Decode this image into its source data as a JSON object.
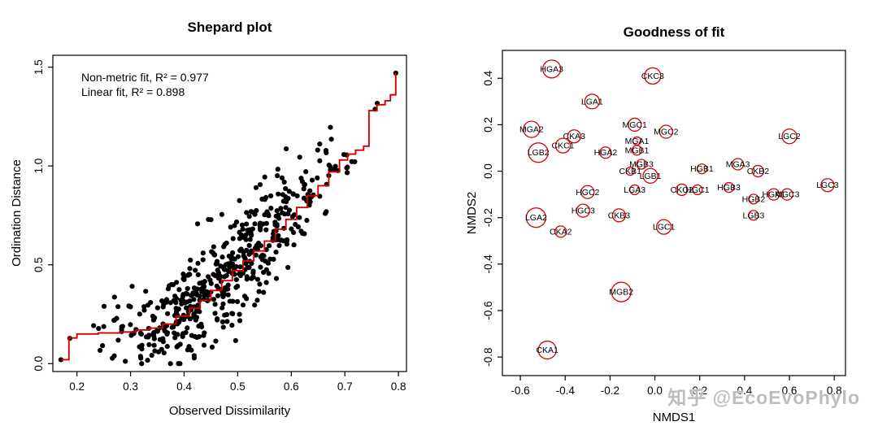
{
  "watermark": "知乎 @EcoEvoPhylo",
  "chart_data": [
    {
      "type": "scatter",
      "title": "Shepard plot",
      "xlabel": "Observed Dissimilarity",
      "ylabel": "Ordination Distance",
      "xlim": [
        0.155,
        0.815
      ],
      "ylim": [
        -0.04,
        1.56
      ],
      "x_ticks": [
        0.2,
        0.3,
        0.4,
        0.5,
        0.6,
        0.7,
        0.8
      ],
      "x_tick_labels": [
        "0.2",
        "0.3",
        "0.4",
        "0.5",
        "0.6",
        "0.7",
        "0.8"
      ],
      "y_ticks": [
        0.0,
        0.5,
        1.0,
        1.5
      ],
      "y_tick_labels": [
        "0.0",
        "0.5",
        "1.0",
        "1.5"
      ],
      "annotations": [
        "Non-metric fit, R² = 0.977",
        "Linear fit, R² = 0.898"
      ],
      "point_color": "#000000",
      "line_color": "#d40000",
      "scatter_generation": {
        "n": 520,
        "seed": 11,
        "x_min": 0.17,
        "x_max": 0.8,
        "noise_sd": 0.105
      },
      "extra_points": [
        [
          0.17,
          0.02
        ],
        [
          0.795,
          1.47
        ]
      ],
      "monotone_line": [
        [
          0.17,
          0.02
        ],
        [
          0.185,
          0.13
        ],
        [
          0.2,
          0.15
        ],
        [
          0.24,
          0.155
        ],
        [
          0.28,
          0.16
        ],
        [
          0.31,
          0.17
        ],
        [
          0.335,
          0.18
        ],
        [
          0.36,
          0.2
        ],
        [
          0.385,
          0.24
        ],
        [
          0.41,
          0.28
        ],
        [
          0.43,
          0.32
        ],
        [
          0.45,
          0.37
        ],
        [
          0.47,
          0.42
        ],
        [
          0.49,
          0.47
        ],
        [
          0.51,
          0.52
        ],
        [
          0.53,
          0.57
        ],
        [
          0.55,
          0.62
        ],
        [
          0.57,
          0.68
        ],
        [
          0.59,
          0.73
        ],
        [
          0.61,
          0.79
        ],
        [
          0.63,
          0.85
        ],
        [
          0.65,
          0.9
        ],
        [
          0.67,
          0.97
        ],
        [
          0.69,
          1.03
        ],
        [
          0.705,
          1.06
        ],
        [
          0.72,
          1.08
        ],
        [
          0.735,
          1.1
        ],
        [
          0.745,
          1.28
        ],
        [
          0.76,
          1.31
        ],
        [
          0.775,
          1.33
        ],
        [
          0.785,
          1.36
        ],
        [
          0.795,
          1.47
        ]
      ]
    },
    {
      "type": "scatter",
      "title": "Goodness of fit",
      "xlabel": "NMDS1",
      "ylabel": "NMDS2",
      "xlim": [
        -0.68,
        0.85
      ],
      "ylim": [
        -0.88,
        0.52
      ],
      "x_ticks": [
        -0.6,
        -0.4,
        -0.2,
        0.0,
        0.2,
        0.4,
        0.6,
        0.8
      ],
      "x_tick_labels": [
        "-0.6",
        "-0.4",
        "-0.2",
        "0.0",
        "0.2",
        "0.4",
        "0.6",
        "0.8"
      ],
      "y_ticks": [
        -0.8,
        -0.6,
        -0.4,
        -0.2,
        0.0,
        0.2,
        0.4
      ],
      "y_tick_labels": [
        "-0.8",
        "-0.6",
        "-0.4",
        "-0.2",
        "0.0",
        "0.2",
        "0.4"
      ],
      "circle_color": "#d40000",
      "label_color": "#000000",
      "points": [
        {
          "label": "HGA3",
          "x": -0.46,
          "y": 0.44,
          "r": 11
        },
        {
          "label": "CKC3",
          "x": -0.01,
          "y": 0.41,
          "r": 10
        },
        {
          "label": "LGA1",
          "x": -0.28,
          "y": 0.3,
          "r": 9
        },
        {
          "label": "MGA2",
          "x": -0.55,
          "y": 0.18,
          "r": 10
        },
        {
          "label": "CKA3",
          "x": -0.36,
          "y": 0.15,
          "r": 8
        },
        {
          "label": "CKC1",
          "x": -0.41,
          "y": 0.11,
          "r": 9
        },
        {
          "label": "MGC1",
          "x": -0.09,
          "y": 0.2,
          "r": 8
        },
        {
          "label": "MGC2",
          "x": 0.05,
          "y": 0.17,
          "r": 8
        },
        {
          "label": "LGC2",
          "x": 0.6,
          "y": 0.15,
          "r": 9
        },
        {
          "label": "LGB2",
          "x": -0.52,
          "y": 0.08,
          "r": 12
        },
        {
          "label": "HGA2",
          "x": -0.22,
          "y": 0.08,
          "r": 7
        },
        {
          "label": "MGA1",
          "x": -0.08,
          "y": 0.13,
          "r": 5
        },
        {
          "label": "MGB1",
          "x": -0.08,
          "y": 0.09,
          "r": 6
        },
        {
          "label": "MGB3",
          "x": -0.06,
          "y": 0.03,
          "r": 6
        },
        {
          "label": "CKB1",
          "x": -0.11,
          "y": 0.0,
          "r": 5
        },
        {
          "label": "LGB1",
          "x": -0.02,
          "y": -0.02,
          "r": 9
        },
        {
          "label": "HGB1",
          "x": 0.21,
          "y": 0.01,
          "r": 6
        },
        {
          "label": "MGA3",
          "x": 0.37,
          "y": 0.03,
          "r": 7
        },
        {
          "label": "CKB2",
          "x": 0.46,
          "y": 0.0,
          "r": 7
        },
        {
          "label": "LGC3",
          "x": 0.77,
          "y": -0.06,
          "r": 8
        },
        {
          "label": "HGC2",
          "x": -0.3,
          "y": -0.09,
          "r": 8
        },
        {
          "label": "LGA3",
          "x": -0.09,
          "y": -0.08,
          "r": 6
        },
        {
          "label": "CKC2",
          "x": 0.12,
          "y": -0.08,
          "r": 7
        },
        {
          "label": "HGC1",
          "x": 0.19,
          "y": -0.08,
          "r": 6
        },
        {
          "label": "HGB3",
          "x": 0.33,
          "y": -0.07,
          "r": 6
        },
        {
          "label": "HGB2",
          "x": 0.44,
          "y": -0.12,
          "r": 6
        },
        {
          "label": "HGA1",
          "x": 0.53,
          "y": -0.1,
          "r": 7
        },
        {
          "label": "MGC3",
          "x": 0.59,
          "y": -0.1,
          "r": 7
        },
        {
          "label": "LGB3",
          "x": 0.44,
          "y": -0.19,
          "r": 6
        },
        {
          "label": "HGC3",
          "x": -0.32,
          "y": -0.17,
          "r": 8
        },
        {
          "label": "CKB3",
          "x": -0.16,
          "y": -0.19,
          "r": 8
        },
        {
          "label": "LGA2",
          "x": -0.53,
          "y": -0.2,
          "r": 12
        },
        {
          "label": "CKA2",
          "x": -0.42,
          "y": -0.26,
          "r": 7
        },
        {
          "label": "LGC1",
          "x": 0.04,
          "y": -0.24,
          "r": 9
        },
        {
          "label": "MGB2",
          "x": -0.15,
          "y": -0.52,
          "r": 12
        },
        {
          "label": "CKA1",
          "x": -0.48,
          "y": -0.77,
          "r": 11
        }
      ]
    }
  ]
}
